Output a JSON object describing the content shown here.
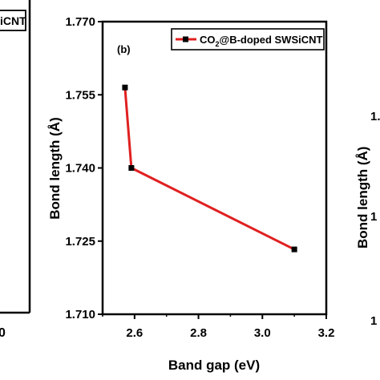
{
  "left_panel": {
    "legend_fragment": "iCNT",
    "tick_fragment": "0"
  },
  "right_panel": {
    "ylabel_fragment": "Bond length (Å)",
    "tick_fragment_1": "1.",
    "tick_fragment_2": "1",
    "tick_fragment_3": "1"
  },
  "chart_data": {
    "type": "line",
    "panel_label": "(b)",
    "xlabel": "Band gap (eV)",
    "ylabel": "Bond length (Å)",
    "xlim": [
      2.5,
      3.2
    ],
    "ylim": [
      1.71,
      1.77
    ],
    "xticks": [
      "2.6",
      "2.8",
      "3.0",
      "3.2"
    ],
    "yticks": [
      "1.710",
      "1.725",
      "1.740",
      "1.755",
      "1.770"
    ],
    "legend_position": "top-right",
    "series": [
      {
        "name": "CO2@B-doped SWSiCNT",
        "legend_parts": {
          "pre": "CO",
          "sub": "2",
          "post": "@B-doped SWSiCNT"
        },
        "color": "#e02020",
        "marker_color": "#000000",
        "x": [
          2.57,
          2.59,
          3.1
        ],
        "y": [
          1.7565,
          1.74,
          1.7233
        ]
      }
    ],
    "grid": false
  }
}
